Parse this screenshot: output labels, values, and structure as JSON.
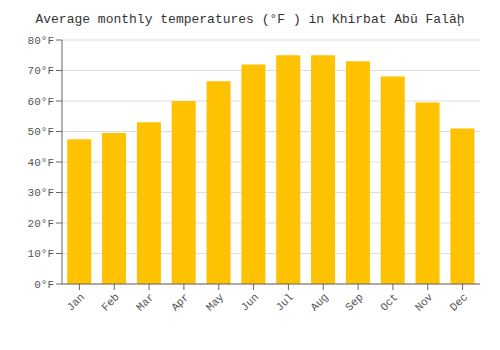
{
  "chart_data": {
    "type": "bar",
    "title": "Average monthly temperatures (°F ) in Khirbat Abū Falāḩ",
    "categories": [
      "Jan",
      "Feb",
      "Mar",
      "Apr",
      "May",
      "Jun",
      "Jul",
      "Aug",
      "Sep",
      "Oct",
      "Nov",
      "Dec"
    ],
    "values": [
      47.5,
      49.5,
      53.0,
      60.0,
      66.5,
      72.0,
      75.0,
      75.0,
      73.0,
      68.0,
      59.5,
      51.0
    ],
    "color": "#FFC200",
    "ylim": [
      0,
      80
    ],
    "yticks": [
      {
        "value": 0,
        "label": "0°F"
      },
      {
        "value": 10,
        "label": "10°F"
      },
      {
        "value": 20,
        "label": "20°F"
      },
      {
        "value": 30,
        "label": "30°F"
      },
      {
        "value": 40,
        "label": "40°F"
      },
      {
        "value": 50,
        "label": "50°F"
      },
      {
        "value": 60,
        "label": "60°F"
      },
      {
        "value": 70,
        "label": "70°F"
      },
      {
        "value": 80,
        "label": "80°F"
      }
    ],
    "grid": true
  }
}
